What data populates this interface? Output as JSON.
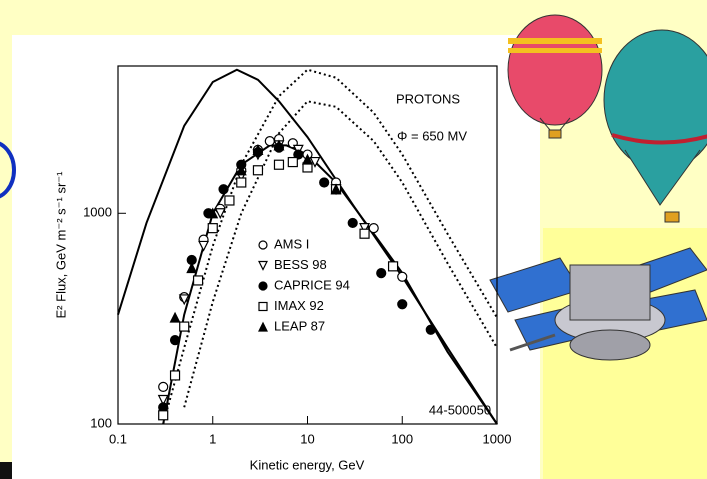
{
  "chart_data": {
    "type": "scatter",
    "xlabel": "Kinetic energy, GeV",
    "ylabel": "E² Flux, GeV m⁻² s⁻¹ sr⁻¹",
    "annotations": [
      "PROTONS",
      "Φ = 650 MV",
      "44-500050"
    ],
    "log_x": true,
    "log_y": true,
    "xlim": [
      0.1,
      1000
    ],
    "ylim": [
      100,
      5000
    ],
    "xticks": [
      0.1,
      1,
      10,
      100,
      1000
    ],
    "yticks": [
      100,
      1000
    ],
    "lines": [
      {
        "linestyle": "solid",
        "color": "#000000",
        "x": [
          0.1,
          0.2,
          0.5,
          1,
          1.8,
          3,
          5,
          10,
          30,
          100,
          300,
          1000
        ],
        "values": [
          330,
          900,
          2600,
          4200,
          4800,
          4300,
          3400,
          2300,
          1100,
          500,
          230,
          100
        ]
      },
      {
        "linestyle": "dotted",
        "color": "#000000",
        "x": [
          0.3,
          0.5,
          1,
          2,
          5,
          10,
          20,
          50,
          100,
          300,
          1000
        ],
        "values": [
          100,
          230,
          700,
          1700,
          3600,
          4800,
          4400,
          3000,
          1900,
          800,
          320
        ]
      },
      {
        "linestyle": "dotted",
        "color": "#000000",
        "x": [
          0.5,
          1,
          2,
          5,
          10,
          20,
          50,
          100,
          300,
          1000
        ],
        "values": [
          120,
          380,
          1000,
          2400,
          3400,
          3200,
          2200,
          1400,
          580,
          230
        ]
      },
      {
        "linestyle": "solid",
        "color": "#000000",
        "x": [
          0.3,
          0.5,
          1,
          2,
          4,
          6,
          10,
          20,
          50,
          100,
          300,
          1000
        ],
        "values": [
          100,
          330,
          1000,
          1700,
          2100,
          2100,
          1900,
          1400,
          800,
          520,
          220,
          100
        ]
      }
    ],
    "series": [
      {
        "name": "AMS I",
        "marker": "circle",
        "filled": false,
        "color": "#000000",
        "x": [
          0.3,
          0.5,
          0.8,
          1.2,
          2,
          3,
          4,
          5,
          7,
          10,
          20,
          50,
          100
        ],
        "values": [
          150,
          400,
          750,
          1050,
          1600,
          2000,
          2200,
          2250,
          2150,
          1900,
          1400,
          850,
          500
        ]
      },
      {
        "name": "BESS 98",
        "marker": "triangle-down",
        "filled": false,
        "color": "#000000",
        "x": [
          0.3,
          0.5,
          0.8,
          1.2,
          2,
          3,
          5,
          8,
          12,
          20,
          40
        ],
        "values": [
          130,
          390,
          700,
          1000,
          1500,
          1900,
          2100,
          2000,
          1750,
          1300,
          850
        ]
      },
      {
        "name": "CAPRICE 94",
        "marker": "circle",
        "filled": true,
        "color": "#000000",
        "x": [
          0.3,
          0.4,
          0.6,
          0.9,
          1.3,
          2,
          3,
          5,
          8,
          15,
          30,
          60,
          100,
          200
        ],
        "values": [
          120,
          250,
          600,
          1000,
          1300,
          1700,
          1950,
          2050,
          1900,
          1400,
          900,
          520,
          370,
          280
        ]
      },
      {
        "name": "IMAX 92",
        "marker": "square",
        "filled": false,
        "color": "#000000",
        "x": [
          0.3,
          0.4,
          0.5,
          0.7,
          1,
          1.5,
          2,
          3,
          5,
          7,
          10,
          20,
          40,
          80
        ],
        "values": [
          110,
          170,
          290,
          480,
          850,
          1150,
          1400,
          1600,
          1700,
          1750,
          1650,
          1300,
          800,
          560
        ]
      },
      {
        "name": "LEAP 87",
        "marker": "triangle",
        "filled": true,
        "color": "#000000",
        "x": [
          0.4,
          0.6,
          1,
          2,
          3,
          5,
          10,
          20
        ],
        "values": [
          320,
          550,
          1000,
          1600,
          2000,
          2100,
          1800,
          1300
        ]
      }
    ]
  }
}
